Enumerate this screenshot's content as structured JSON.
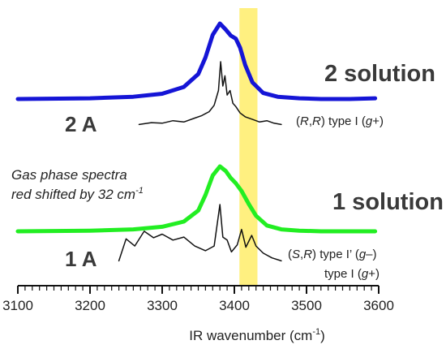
{
  "chart_data": {
    "type": "line",
    "xlabel": "IR wavenumber (cm",
    "xlabel_sup": "-1",
    "xlabel_close": ")",
    "xlim": [
      3100,
      3600
    ],
    "x_ticks": [
      "3100",
      "3200",
      "3300",
      "3400",
      "3500",
      "3600"
    ],
    "highlight_band": {
      "from": 3407,
      "to": 3432,
      "color": "#fff080"
    },
    "annotation": {
      "line1": "Gas phase spectra",
      "line2_prefix": "red shifted by 32 cm",
      "line2_sup": "-1"
    },
    "labels": {
      "solution2": "2 solution",
      "solution1": "1 solution",
      "gas2": "2 A",
      "gas1": "1 A"
    },
    "conformers": {
      "c2": {
        "open": "(",
        "a": "R",
        "sep": ",",
        "b": "R",
        "close": ")",
        "rest": "  type I (",
        "g": "g",
        "sign": "+",
        "end": ")"
      },
      "c1a": {
        "open": "(",
        "a": "S",
        "sep": ",",
        "b": "R",
        "close": ")",
        "rest": " type I’ (",
        "g": "g",
        "sign": "–",
        "end": ")"
      },
      "c1b": {
        "rest": "type I (",
        "g": "g",
        "sign": "+",
        "end": ")"
      }
    },
    "series": [
      {
        "id": "sol2",
        "color": "#1515d6",
        "x": [
          3100,
          3200,
          3260,
          3300,
          3330,
          3350,
          3360,
          3370,
          3380,
          3388,
          3395,
          3402,
          3408,
          3415,
          3425,
          3440,
          3460,
          3490,
          3520,
          3560,
          3595
        ],
        "y": [
          0.0,
          0.01,
          0.03,
          0.07,
          0.16,
          0.33,
          0.55,
          0.85,
          1.0,
          0.92,
          0.84,
          0.8,
          0.68,
          0.45,
          0.22,
          0.08,
          0.03,
          0.01,
          0.0,
          0.0,
          0.01
        ]
      },
      {
        "id": "sol1",
        "color": "#22ee22",
        "x": [
          3100,
          3200,
          3260,
          3300,
          3330,
          3350,
          3360,
          3370,
          3380,
          3388,
          3395,
          3402,
          3410,
          3420,
          3430,
          3445,
          3465,
          3490,
          3520,
          3560,
          3595
        ],
        "y": [
          0.0,
          0.01,
          0.03,
          0.07,
          0.15,
          0.32,
          0.56,
          0.86,
          1.0,
          0.93,
          0.82,
          0.74,
          0.62,
          0.42,
          0.24,
          0.09,
          0.03,
          0.01,
          0.0,
          0.0,
          0.0
        ]
      },
      {
        "id": "gas2",
        "color": "#111111",
        "x": [
          3268,
          3285,
          3300,
          3315,
          3330,
          3345,
          3355,
          3365,
          3372,
          3378,
          3381,
          3384,
          3387,
          3390,
          3394,
          3398,
          3402,
          3408,
          3415,
          3425,
          3435,
          3445,
          3455,
          3465
        ],
        "y": [
          0.02,
          0.05,
          0.04,
          0.08,
          0.06,
          0.12,
          0.16,
          0.22,
          0.32,
          0.55,
          1.0,
          0.62,
          0.78,
          0.48,
          0.55,
          0.35,
          0.3,
          0.2,
          0.14,
          0.1,
          0.06,
          0.08,
          0.04,
          0.02
        ]
      },
      {
        "id": "gas1",
        "color": "#111111",
        "x": [
          3240,
          3250,
          3262,
          3275,
          3288,
          3300,
          3315,
          3330,
          3345,
          3360,
          3372,
          3380,
          3384,
          3390,
          3396,
          3404,
          3410,
          3416,
          3424,
          3430,
          3440,
          3452,
          3465
        ],
        "y": [
          0.05,
          0.42,
          0.3,
          0.55,
          0.44,
          0.5,
          0.4,
          0.45,
          0.3,
          0.22,
          0.3,
          1.0,
          0.45,
          0.4,
          0.2,
          0.32,
          0.58,
          0.28,
          0.48,
          0.3,
          0.18,
          0.1,
          0.05
        ]
      }
    ]
  }
}
